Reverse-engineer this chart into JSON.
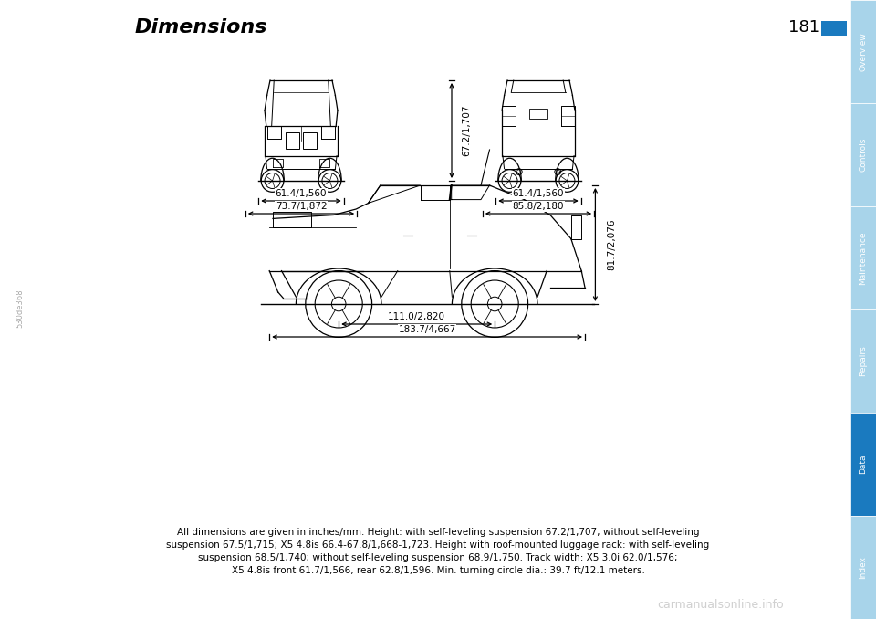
{
  "title": "Dimensions",
  "page_number": "181",
  "background_color": "#ffffff",
  "tabs": [
    "Overview",
    "Controls",
    "Maintenance",
    "Repairs",
    "Data",
    "Index"
  ],
  "active_tab": "Data",
  "tab_active_color": "#1a7abf",
  "tab_inactive_color": "#a8d4ea",
  "tab_text_color": "#ffffff",
  "front_width_inner": "61.4/1,560",
  "front_width_outer": "73.7/1,872",
  "rear_width_inner": "61.4/1,560",
  "rear_width_outer": "85.8/2,180",
  "height_label": "67.2/1,707",
  "side_height": "81.7/2,076",
  "wheelbase": "111.0/2,820",
  "total_length": "183.7/4,667",
  "caption_line1": "All dimensions are given in inches/mm. Height: with self-leveling suspension 67.2/1,707; without self-leveling",
  "caption_line2": "suspension 67.5/1,715; X5 4.8is 66.4-67.8/1,668-1,723. Height with roof-mounted luggage rack: with self-leveling",
  "caption_line3": "suspension 68.5/1,740; without self-leveling suspension 68.9/1,750. Track width: X5 3.0i 62.0/1,576;",
  "caption_line4": "X5 4.8is front 61.7/1,566, rear 62.8/1,596. Min. turning circle dia.: 39.7 ft/12.1 meters.",
  "image_code": "530de368",
  "watermark": "carmanualsonline.info"
}
